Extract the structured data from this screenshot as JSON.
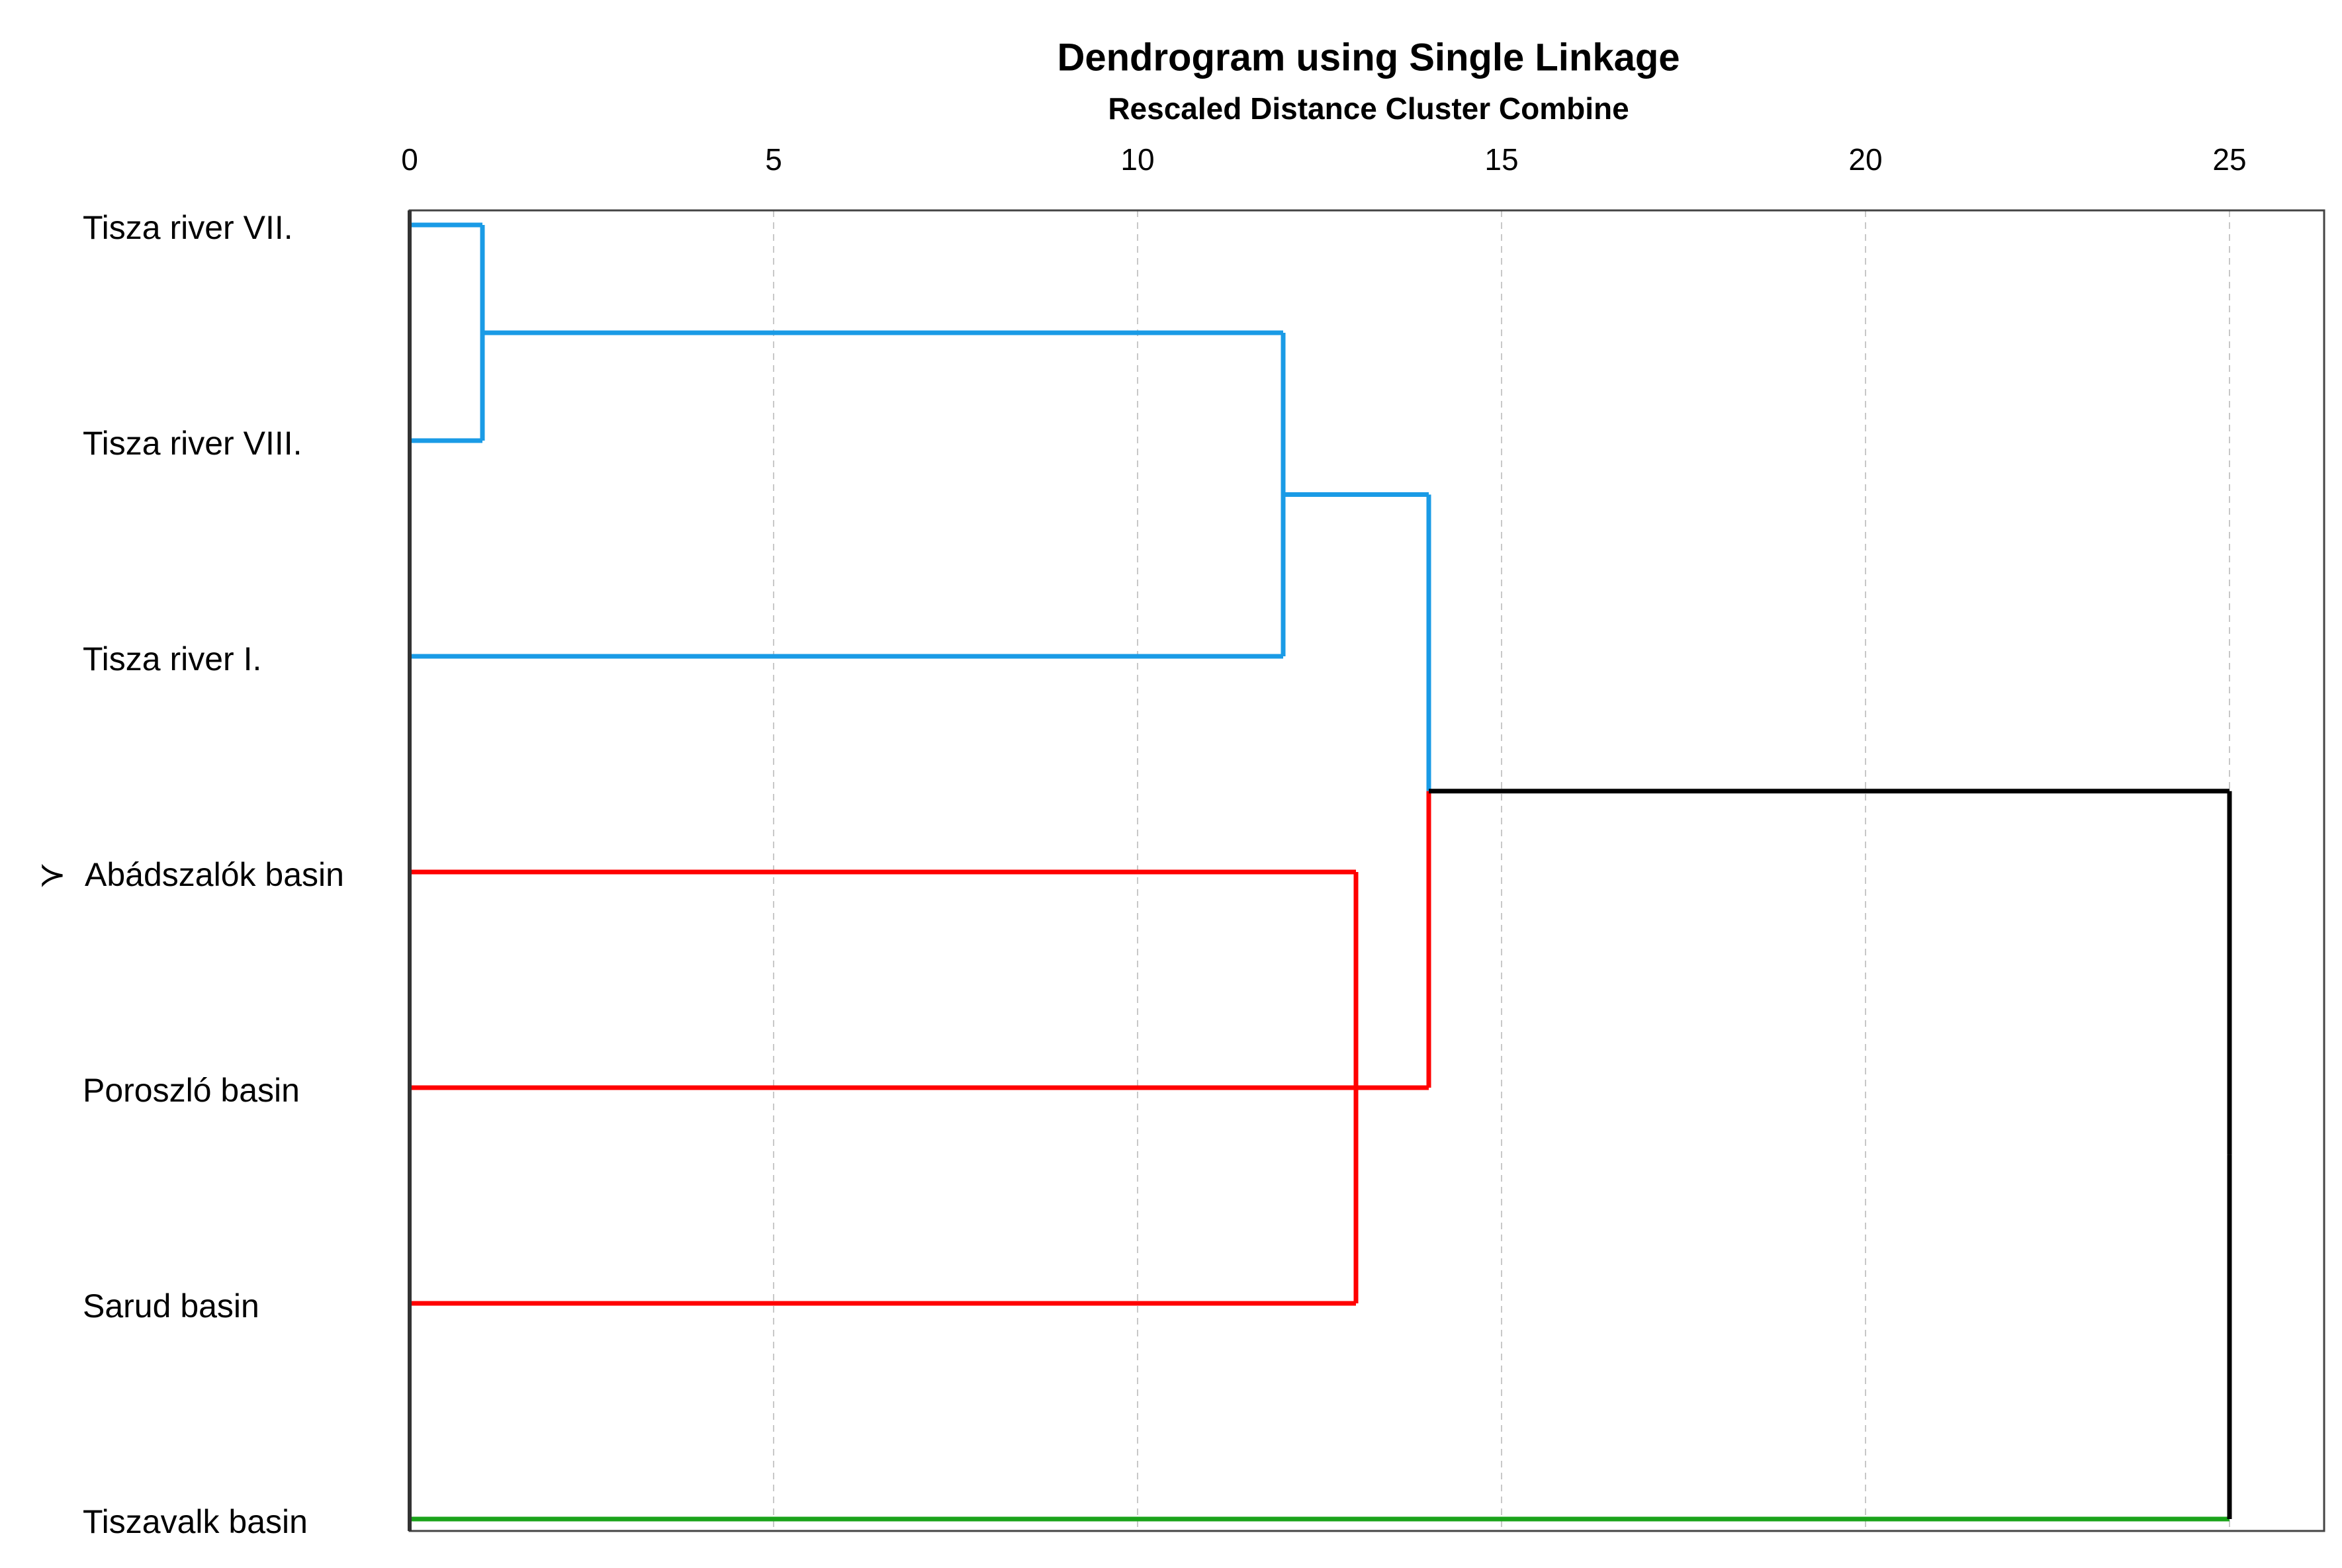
{
  "chart_data": {
    "type": "dendrogram",
    "title": "Dendrogram using Single Linkage",
    "subtitle": "Rescaled Distance Cluster Combine",
    "leaves": [
      "Tisza river VII.",
      "Tisza river VIII.",
      "Tisza river I.",
      "Abádszalók basin",
      "Poroszló basin",
      "Sarud basin",
      "Tiszavalk basin"
    ],
    "leaf_colors": [
      "#1a9be6",
      "#1a9be6",
      "#1a9be6",
      "#ff0000",
      "#ff0000",
      "#ff0000",
      "#1aa31a"
    ],
    "marker": "≻",
    "marker_leaf": 3,
    "merges": [
      {
        "children": [
          "leaf:0",
          "leaf:1"
        ],
        "distance": 1,
        "color": "#1a9be6"
      },
      {
        "children": [
          "merge:0",
          "leaf:2"
        ],
        "distance": 12,
        "color": "#1a9be6"
      },
      {
        "children": [
          "leaf:3",
          "leaf:4",
          "leaf:5"
        ],
        "distance": 13,
        "color": "#ff0000"
      },
      {
        "children": [
          "merge:1",
          "merge:2"
        ],
        "distance": 14,
        "color": "#000000"
      },
      {
        "children": [
          "merge:3",
          "leaf:6"
        ],
        "distance": 25,
        "color": "#000000"
      }
    ],
    "xlim": [
      0,
      26.3
    ],
    "xticks": [
      0,
      5,
      10,
      15,
      20,
      25
    ],
    "grid": true
  }
}
